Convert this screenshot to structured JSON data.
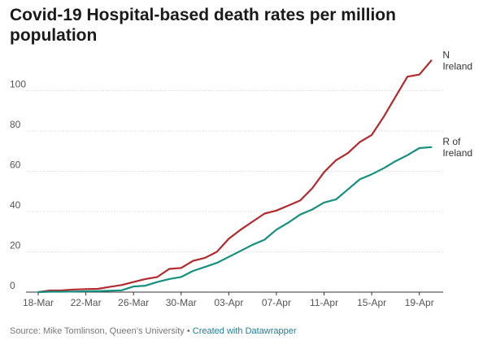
{
  "chart_data": {
    "type": "line",
    "title": "Covid-19 Hospital-based death rates per million population",
    "xlabel": "",
    "ylabel": "",
    "ylim": [
      0,
      120
    ],
    "yticks": [
      0,
      20,
      40,
      60,
      80,
      100
    ],
    "xlim": [
      "18-Mar",
      "21-Apr"
    ],
    "xtick_labels": [
      "18-Mar",
      "22-Mar",
      "26-Mar",
      "30-Mar",
      "03-Apr",
      "07-Apr",
      "11-Apr",
      "15-Apr",
      "19-Apr"
    ],
    "x": [
      "18-Mar",
      "19-Mar",
      "20-Mar",
      "21-Mar",
      "22-Mar",
      "23-Mar",
      "24-Mar",
      "25-Mar",
      "26-Mar",
      "27-Mar",
      "28-Mar",
      "29-Mar",
      "30-Mar",
      "31-Mar",
      "01-Apr",
      "02-Apr",
      "03-Apr",
      "04-Apr",
      "05-Apr",
      "06-Apr",
      "07-Apr",
      "08-Apr",
      "09-Apr",
      "10-Apr",
      "11-Apr",
      "12-Apr",
      "13-Apr",
      "14-Apr",
      "15-Apr",
      "16-Apr",
      "17-Apr",
      "18-Apr",
      "19-Apr",
      "20-Apr",
      "21-Apr"
    ],
    "grid": "horizontal",
    "series": [
      {
        "name": "N Ireland",
        "label_lines": [
          "N",
          "Ireland"
        ],
        "color": "#b2292e",
        "values": [
          0,
          0.8,
          0.9,
          1.3,
          1.5,
          1.6,
          2.6,
          3.5,
          5.0,
          6.5,
          7.5,
          11.5,
          12.0,
          15.5,
          17.0,
          20.0,
          26.5,
          31.0,
          35.0,
          39.0,
          40.5,
          43.0,
          45.5,
          51.5,
          59.5,
          65.5,
          69.0,
          74.5,
          78.0,
          87.0,
          97.0,
          107.0,
          108.0,
          115.0,
          null
        ]
      },
      {
        "name": "R of Ireland",
        "label_lines": [
          "R of",
          "Ireland"
        ],
        "color": "#15907f",
        "values": [
          0,
          0.2,
          0.2,
          0.3,
          0.4,
          0.5,
          0.7,
          0.9,
          2.8,
          3.2,
          5.0,
          6.5,
          7.5,
          10.5,
          12.5,
          14.5,
          17.5,
          20.5,
          23.5,
          26.0,
          31.0,
          34.5,
          38.5,
          41.0,
          44.5,
          46.0,
          51.0,
          56.0,
          58.5,
          61.5,
          65.0,
          68.0,
          71.5,
          72.0,
          null
        ]
      }
    ]
  },
  "footer": {
    "source": "Source: Mike Tomlinson, Queen’s University",
    "separator": " • ",
    "credit": "Created with Datawrapper"
  }
}
